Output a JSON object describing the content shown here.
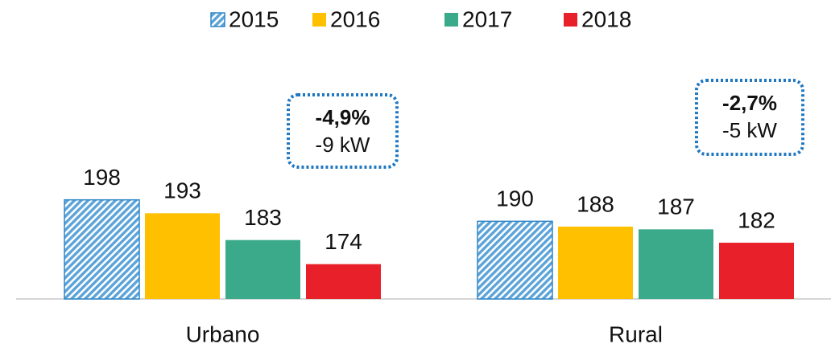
{
  "chart_data": {
    "type": "bar",
    "categories": [
      "Urbano",
      "Rural"
    ],
    "series": [
      {
        "name": "2015",
        "color": "#5ba3d9",
        "pattern": "hatch",
        "values": [
          198,
          190
        ]
      },
      {
        "name": "2016",
        "color": "#ffc000",
        "values": [
          193,
          188
        ]
      },
      {
        "name": "2017",
        "color": "#3aaa8a",
        "values": [
          183,
          187
        ]
      },
      {
        "name": "2018",
        "color": "#e8202a",
        "values": [
          174,
          182
        ]
      }
    ],
    "ylim": [
      161,
      240
    ],
    "legend": "top",
    "annotations": [
      {
        "text": "-4,9%",
        "subtext": "-9 kW"
      },
      {
        "text": "-2,7%",
        "subtext": "-5 kW"
      }
    ]
  }
}
